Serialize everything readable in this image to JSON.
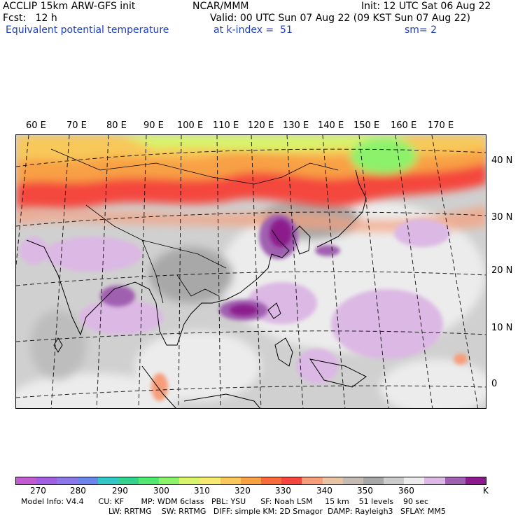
{
  "header": {
    "line1_left": "ACCLIP 15km ARW-GFS init",
    "line1_center": "NCAR/MMM",
    "line1_right": "Init: 12 UTC Sat 06 Aug 22",
    "line2_left": "Fcst:   12 h",
    "line2_right": "Valid: 00 UTC Sun 07 Aug 22 (09 KST Sun 07 Aug 22)",
    "line3_field": "Equivalent potential temperature",
    "line3_level": "at k-index =  51",
    "line3_smooth": "sm= 2"
  },
  "map": {
    "lon_labels": [
      "60 E",
      "70 E",
      "80 E",
      "90 E",
      "100 E",
      "110 E",
      "120 E",
      "130 E",
      "140 E",
      "150 E",
      "160 E",
      "170 E"
    ],
    "lat_labels": [
      "40 N",
      "30 N",
      "20 N",
      "10 N",
      "0"
    ]
  },
  "colorbar": {
    "colors": [
      "#c05cd0",
      "#a25ee0",
      "#8c78e8",
      "#6a86ea",
      "#33c6c6",
      "#34d28e",
      "#52e870",
      "#8cf26c",
      "#d8f46a",
      "#f6ea70",
      "#f8c85a",
      "#f8a044",
      "#f86a3c",
      "#f4463c",
      "#f69e7a",
      "#e8c4a4",
      "#c4bcb4",
      "#a8a8a8",
      "#cccccc",
      "#ececec",
      "#dcb8e4",
      "#a060b0",
      "#8c1a8c"
    ],
    "tick_labels": [
      "270",
      "280",
      "290",
      "300",
      "310",
      "320",
      "330",
      "340",
      "350",
      "360"
    ],
    "unit": "K"
  },
  "footer": {
    "line1": "Model Info: V4.4      CU: KF       MP: WDM 6class   PBL: YSU      SF: Noah LSM     15 km    51 levels    90 sec",
    "line2": "LW: RRTMG    SW: RRTMG   DIFF: simple KM: 2D Smagor  DAMP: Rayleigh3   SFLAY: MM5"
  }
}
